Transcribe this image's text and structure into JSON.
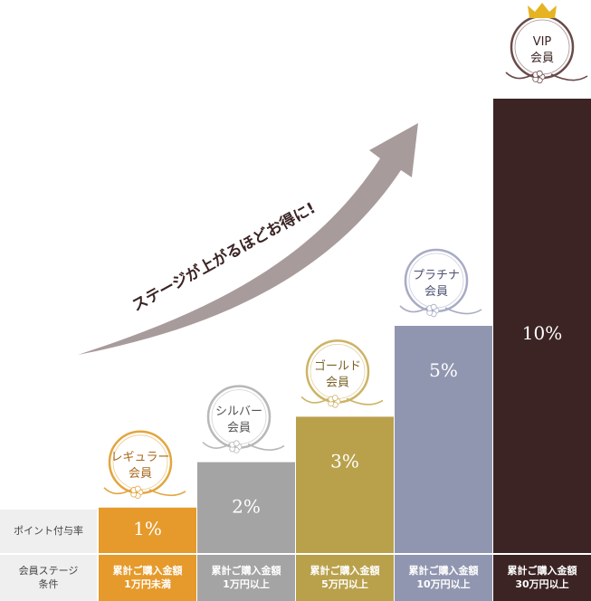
{
  "chart_data": {
    "type": "bar",
    "categories": [
      "レギュラー会員",
      "シルバー会員",
      "ゴールド会員",
      "プラチナ会員",
      "VIP会員"
    ],
    "values": [
      1,
      2,
      3,
      5,
      10
    ],
    "value_labels": [
      "1%",
      "2%",
      "3%",
      "5%",
      "10%"
    ],
    "arrow_text": "ステージが上がるほどお得に!",
    "row_headers": {
      "rate": "ポイント付与率",
      "condition": [
        "会員ステージ",
        "条件"
      ]
    },
    "stages": [
      {
        "badge": [
          "レギュラー",
          "会員"
        ],
        "condition": [
          "累計ご購入金額",
          "1万円未満"
        ],
        "color": "#e59a2b",
        "badge_color": "#e2a640",
        "text_color": "#a8661a"
      },
      {
        "badge": [
          "シルバー",
          "会員"
        ],
        "condition": [
          "累計ご購入金額",
          "1万円以上"
        ],
        "color": "#a4a4a4",
        "badge_color": "#b8b8b8",
        "text_color": "#555555"
      },
      {
        "badge": [
          "ゴールド",
          "会員"
        ],
        "condition": [
          "累計ご購入金額",
          "5万円以上"
        ],
        "color": "#b9a14c",
        "badge_color": "#cdb466",
        "text_color": "#7a6328"
      },
      {
        "badge": [
          "プラチナ",
          "会員"
        ],
        "condition": [
          "累計ご購入金額",
          "10万円以上"
        ],
        "color": "#9196b0",
        "badge_color": "#a8abc4",
        "text_color": "#4d5273"
      },
      {
        "badge": [
          "VIP",
          "会員"
        ],
        "condition": [
          "累計ご購入金額",
          "30万円以上"
        ],
        "color": "#3c2424",
        "badge_color": "#6b4a4a",
        "text_color": "#3c2424"
      }
    ],
    "arrow_color": "#a89b9b",
    "crown_color": "#e6b422"
  }
}
